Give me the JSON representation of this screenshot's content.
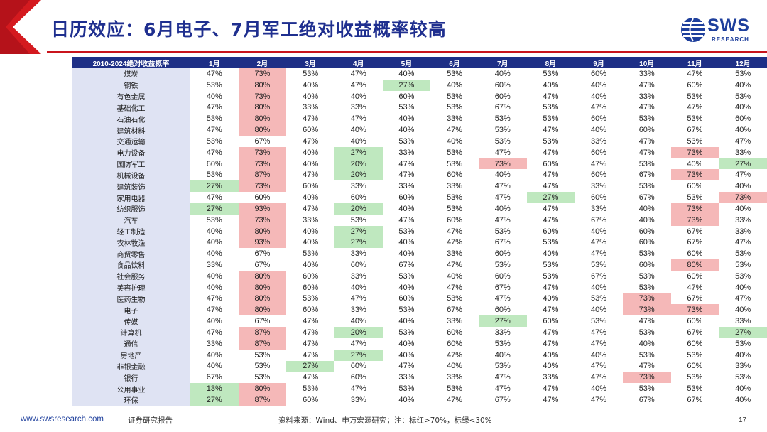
{
  "title": "日历效应：6月电子、7月军工绝对收益概率较高",
  "logo": {
    "text": "SWS",
    "sub": "RESEARCH"
  },
  "colors": {
    "header_bg": "#1e2f86",
    "red_mark": "#f5b8b8",
    "green_mark": "#bfe8bf",
    "industry_bg": "#dfe3f3",
    "accent": "#c9141c"
  },
  "chart_data": {
    "type": "table",
    "columns": [
      "2010-2024绝对收益概率",
      "1月",
      "2月",
      "3月",
      "4月",
      "5月",
      "6月",
      "7月",
      "8月",
      "9月",
      "10月",
      "11月",
      "12月"
    ],
    "rows": [
      {
        "name": "煤炭",
        "values": [
          "47%",
          "73%",
          "53%",
          "47%",
          "40%",
          "53%",
          "40%",
          "53%",
          "60%",
          "33%",
          "47%",
          "53%"
        ],
        "marks": {
          "1": "r"
        }
      },
      {
        "name": "钢铁",
        "values": [
          "53%",
          "80%",
          "40%",
          "47%",
          "27%",
          "40%",
          "60%",
          "40%",
          "40%",
          "47%",
          "60%",
          "40%"
        ],
        "marks": {
          "1": "r",
          "4": "g"
        }
      },
      {
        "name": "有色金属",
        "values": [
          "40%",
          "73%",
          "40%",
          "40%",
          "60%",
          "53%",
          "60%",
          "47%",
          "40%",
          "33%",
          "53%",
          "53%"
        ],
        "marks": {
          "1": "r"
        }
      },
      {
        "name": "基础化工",
        "values": [
          "47%",
          "80%",
          "33%",
          "33%",
          "53%",
          "53%",
          "67%",
          "53%",
          "47%",
          "47%",
          "47%",
          "40%"
        ],
        "marks": {
          "1": "r"
        }
      },
      {
        "name": "石油石化",
        "values": [
          "53%",
          "80%",
          "47%",
          "47%",
          "40%",
          "33%",
          "53%",
          "53%",
          "60%",
          "53%",
          "53%",
          "60%"
        ],
        "marks": {
          "1": "r"
        }
      },
      {
        "name": "建筑材料",
        "values": [
          "47%",
          "80%",
          "60%",
          "40%",
          "40%",
          "47%",
          "53%",
          "47%",
          "40%",
          "60%",
          "67%",
          "40%"
        ],
        "marks": {
          "1": "r"
        }
      },
      {
        "name": "交通运输",
        "values": [
          "53%",
          "67%",
          "47%",
          "40%",
          "53%",
          "40%",
          "53%",
          "53%",
          "33%",
          "47%",
          "53%",
          "47%"
        ],
        "marks": {}
      },
      {
        "name": "电力设备",
        "values": [
          "47%",
          "73%",
          "40%",
          "27%",
          "33%",
          "53%",
          "47%",
          "47%",
          "60%",
          "47%",
          "73%",
          "33%"
        ],
        "marks": {
          "1": "r",
          "3": "g",
          "10": "r"
        }
      },
      {
        "name": "国防军工",
        "values": [
          "60%",
          "73%",
          "40%",
          "20%",
          "47%",
          "53%",
          "73%",
          "60%",
          "47%",
          "53%",
          "40%",
          "27%"
        ],
        "marks": {
          "1": "r",
          "3": "g",
          "6": "r",
          "11": "g"
        }
      },
      {
        "name": "机械设备",
        "values": [
          "53%",
          "87%",
          "47%",
          "20%",
          "47%",
          "60%",
          "40%",
          "47%",
          "60%",
          "67%",
          "73%",
          "47%"
        ],
        "marks": {
          "1": "r",
          "3": "g",
          "10": "r"
        }
      },
      {
        "name": "建筑装饰",
        "values": [
          "27%",
          "73%",
          "60%",
          "33%",
          "33%",
          "33%",
          "47%",
          "47%",
          "33%",
          "53%",
          "60%",
          "40%"
        ],
        "marks": {
          "0": "g",
          "1": "r"
        }
      },
      {
        "name": "家用电器",
        "values": [
          "47%",
          "60%",
          "40%",
          "60%",
          "60%",
          "53%",
          "47%",
          "27%",
          "60%",
          "67%",
          "53%",
          "73%"
        ],
        "marks": {
          "7": "g",
          "11": "r"
        }
      },
      {
        "name": "纺织服饰",
        "values": [
          "27%",
          "93%",
          "47%",
          "20%",
          "40%",
          "53%",
          "40%",
          "47%",
          "33%",
          "40%",
          "73%",
          "40%"
        ],
        "marks": {
          "0": "g",
          "1": "r",
          "3": "g",
          "10": "r"
        }
      },
      {
        "name": "汽车",
        "values": [
          "53%",
          "73%",
          "33%",
          "53%",
          "47%",
          "60%",
          "47%",
          "47%",
          "67%",
          "40%",
          "73%",
          "33%"
        ],
        "marks": {
          "1": "r",
          "10": "r"
        }
      },
      {
        "name": "轻工制造",
        "values": [
          "40%",
          "80%",
          "40%",
          "27%",
          "53%",
          "47%",
          "53%",
          "60%",
          "40%",
          "60%",
          "67%",
          "33%"
        ],
        "marks": {
          "1": "r",
          "3": "g"
        }
      },
      {
        "name": "农林牧渔",
        "values": [
          "40%",
          "93%",
          "40%",
          "27%",
          "40%",
          "47%",
          "67%",
          "53%",
          "47%",
          "60%",
          "67%",
          "47%"
        ],
        "marks": {
          "1": "r",
          "3": "g"
        }
      },
      {
        "name": "商贸零售",
        "values": [
          "40%",
          "67%",
          "53%",
          "33%",
          "40%",
          "33%",
          "60%",
          "40%",
          "47%",
          "53%",
          "60%",
          "53%"
        ],
        "marks": {}
      },
      {
        "name": "食品饮料",
        "values": [
          "33%",
          "67%",
          "40%",
          "60%",
          "67%",
          "47%",
          "53%",
          "53%",
          "53%",
          "60%",
          "80%",
          "53%"
        ],
        "marks": {
          "10": "r"
        }
      },
      {
        "name": "社会服务",
        "values": [
          "40%",
          "80%",
          "60%",
          "33%",
          "53%",
          "40%",
          "60%",
          "53%",
          "67%",
          "53%",
          "60%",
          "53%"
        ],
        "marks": {
          "1": "r"
        }
      },
      {
        "name": "美容护理",
        "values": [
          "40%",
          "80%",
          "60%",
          "40%",
          "40%",
          "47%",
          "67%",
          "47%",
          "40%",
          "53%",
          "47%",
          "40%"
        ],
        "marks": {
          "1": "r"
        }
      },
      {
        "name": "医药生物",
        "values": [
          "47%",
          "80%",
          "53%",
          "47%",
          "60%",
          "53%",
          "47%",
          "40%",
          "53%",
          "73%",
          "67%",
          "47%"
        ],
        "marks": {
          "1": "r",
          "9": "r"
        }
      },
      {
        "name": "电子",
        "values": [
          "47%",
          "80%",
          "60%",
          "33%",
          "53%",
          "67%",
          "60%",
          "47%",
          "40%",
          "73%",
          "73%",
          "40%"
        ],
        "marks": {
          "1": "r",
          "9": "r",
          "10": "r"
        }
      },
      {
        "name": "传媒",
        "values": [
          "40%",
          "67%",
          "47%",
          "40%",
          "40%",
          "33%",
          "27%",
          "60%",
          "53%",
          "47%",
          "60%",
          "33%"
        ],
        "marks": {
          "6": "g"
        }
      },
      {
        "name": "计算机",
        "values": [
          "47%",
          "87%",
          "47%",
          "20%",
          "53%",
          "60%",
          "33%",
          "47%",
          "47%",
          "53%",
          "67%",
          "27%"
        ],
        "marks": {
          "1": "r",
          "3": "g",
          "11": "g"
        }
      },
      {
        "name": "通信",
        "values": [
          "33%",
          "87%",
          "47%",
          "47%",
          "40%",
          "60%",
          "53%",
          "47%",
          "47%",
          "40%",
          "60%",
          "53%"
        ],
        "marks": {
          "1": "r"
        }
      },
      {
        "name": "房地产",
        "values": [
          "40%",
          "53%",
          "47%",
          "27%",
          "40%",
          "47%",
          "40%",
          "40%",
          "40%",
          "53%",
          "53%",
          "40%"
        ],
        "marks": {
          "3": "g"
        }
      },
      {
        "name": "非银金融",
        "values": [
          "40%",
          "53%",
          "27%",
          "60%",
          "47%",
          "40%",
          "53%",
          "40%",
          "47%",
          "47%",
          "60%",
          "33%"
        ],
        "marks": {
          "2": "g"
        }
      },
      {
        "name": "银行",
        "values": [
          "67%",
          "53%",
          "47%",
          "60%",
          "33%",
          "33%",
          "47%",
          "33%",
          "47%",
          "73%",
          "53%",
          "53%"
        ],
        "marks": {
          "9": "r"
        }
      },
      {
        "name": "公用事业",
        "values": [
          "13%",
          "80%",
          "53%",
          "47%",
          "53%",
          "53%",
          "47%",
          "47%",
          "40%",
          "53%",
          "53%",
          "40%"
        ],
        "marks": {
          "0": "g",
          "1": "r"
        }
      },
      {
        "name": "环保",
        "values": [
          "27%",
          "87%",
          "60%",
          "33%",
          "40%",
          "47%",
          "67%",
          "47%",
          "47%",
          "67%",
          "67%",
          "40%"
        ],
        "marks": {
          "0": "g",
          "1": "r"
        }
      }
    ]
  },
  "footer": {
    "site": "www.swsresearch.com",
    "report_type": "证券研究报告",
    "source": "资料来源：Wind、申万宏源研究；注：标红>70%，标绿<30%",
    "page": "17"
  }
}
